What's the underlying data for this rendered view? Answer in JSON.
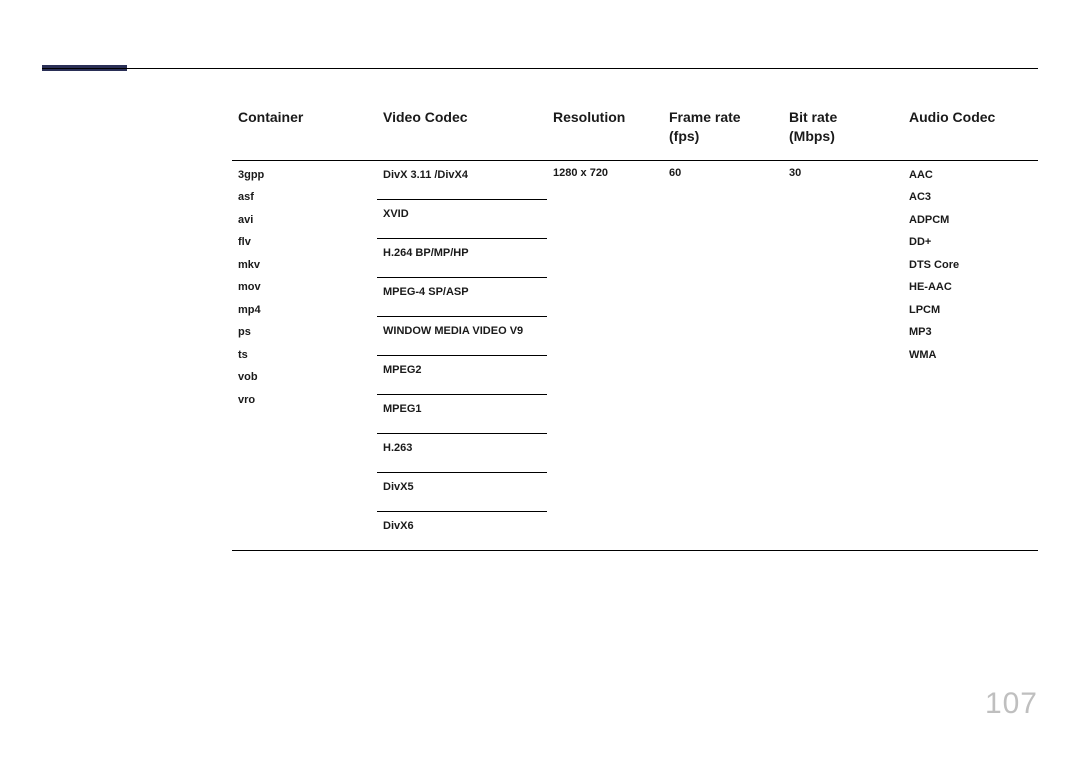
{
  "accent_color": "#2a2f56",
  "page_number": "107",
  "headers": {
    "container": "Container",
    "video_codec": "Video Codec",
    "resolution": "Resolution",
    "frame_rate": "Frame rate\n(fps)",
    "bit_rate": "Bit rate\n(Mbps)",
    "audio_codec": "Audio Codec"
  },
  "containers": [
    "3gpp",
    "asf",
    "avi",
    "flv",
    "mkv",
    "mov",
    "mp4",
    "ps",
    "ts",
    "vob",
    "vro"
  ],
  "video_codecs": [
    "DivX 3.11 /DivX4",
    "XVID",
    "H.264 BP/MP/HP",
    "MPEG-4 SP/ASP",
    "WINDOW MEDIA VIDEO V9",
    "MPEG2",
    "MPEG1",
    "H.263",
    "DivX5",
    "DivX6"
  ],
  "resolution": "1280 x 720",
  "frame_rate": "60",
  "bit_rate": "30",
  "audio_codecs": [
    "AAC",
    "AC3",
    "ADPCM",
    "DD+",
    "DTS Core",
    "HE-AAC",
    "LPCM",
    "MP3",
    "WMA"
  ]
}
